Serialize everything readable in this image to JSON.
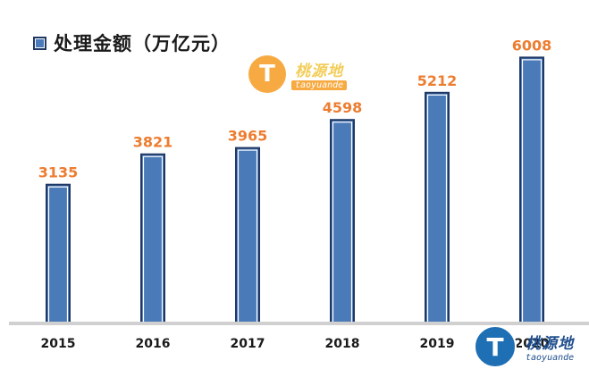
{
  "legend": {
    "label": "处理金额（万亿元）",
    "swatch_color": "#4a7ab8"
  },
  "chart_data": {
    "type": "bar",
    "categories": [
      "2015",
      "2016",
      "2017",
      "2018",
      "2019",
      "2020"
    ],
    "series": [
      {
        "name": "处理金额（万亿元）",
        "values": [
          3135,
          3821,
          3965,
          4598,
          5212,
          6008
        ]
      }
    ],
    "data_labels": [
      "3135",
      "3821",
      "3965",
      "4598",
      "5212",
      "6008"
    ],
    "title": "",
    "xlabel": "",
    "ylabel": "",
    "ylim": [
      0,
      6500
    ],
    "grid": false,
    "legend_position": "top-left",
    "bar_color": "#4a7ab8",
    "bar_border_color": "#1f3864",
    "label_color": "#ed7d31"
  },
  "watermarks": {
    "top": {
      "icon": "T",
      "name": "桃源地",
      "sub": "taoyuande"
    },
    "bottom": {
      "icon": "T",
      "name": "桃源地",
      "sub": "taoyuande"
    }
  }
}
